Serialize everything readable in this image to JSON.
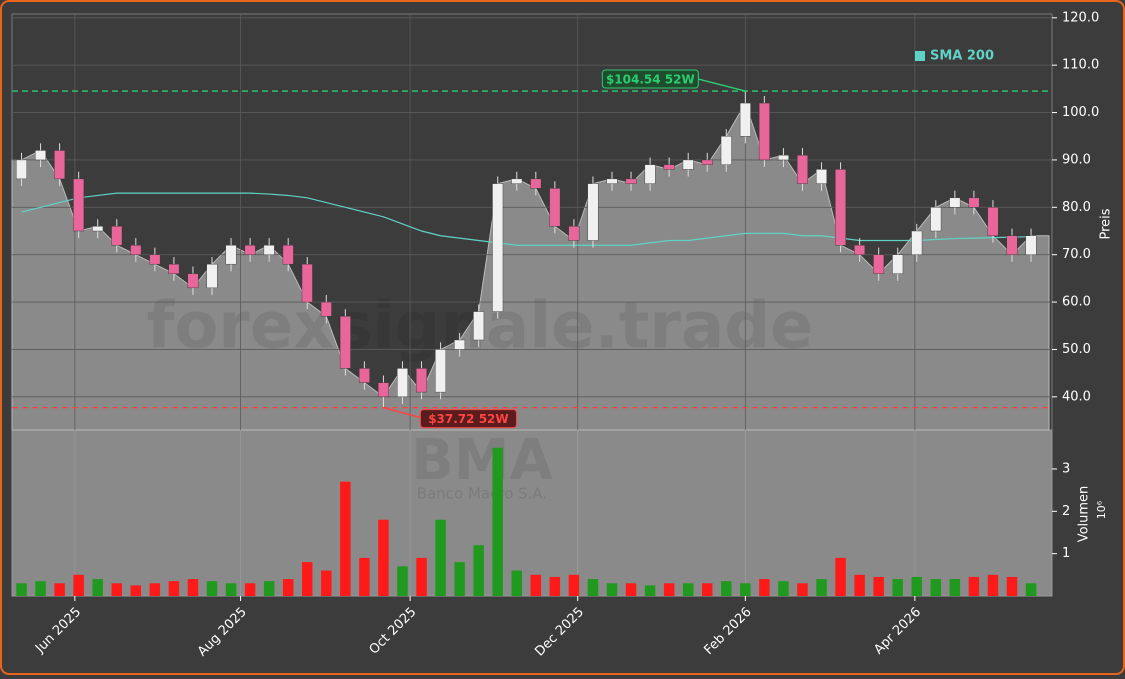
{
  "chart_data": {
    "type": "candlestick",
    "watermark": "forexsignale.trade",
    "ticker": "BMA",
    "company": "Banco Macro S.A.",
    "ylabel": "Preis",
    "volume_label": "Volumen",
    "volume_exponent": "10⁶",
    "x": [
      0.5,
      1.5,
      2.5,
      3.5,
      4.5,
      5.5,
      6.5,
      7.5,
      8.5,
      9.5,
      10.5,
      11.5,
      12.5,
      13.5,
      14.5,
      15.5,
      16.5,
      17.5,
      18.5,
      19.5,
      20.5,
      21.5,
      22.5,
      23.5,
      24.5,
      25.5,
      26.5,
      27.5,
      28.5,
      29.5,
      30.5,
      31.5,
      32.5,
      33.5,
      34.5,
      35.5,
      36.5,
      37.5,
      38.5,
      39.5,
      40.5,
      41.5,
      42.5,
      43.5,
      44.5,
      45.5,
      46.5,
      47.5,
      48.5,
      49.5,
      50.5,
      51.5,
      52.5,
      53.5
    ],
    "open": [
      86,
      90,
      92,
      86,
      75,
      76,
      72,
      70,
      68,
      66,
      63,
      68,
      72,
      70,
      72,
      68,
      60,
      57,
      46,
      43,
      40,
      46,
      41,
      50,
      52,
      58,
      85,
      86,
      84,
      76,
      73,
      85,
      86,
      85,
      89,
      88,
      90,
      89,
      95,
      102,
      90,
      91,
      85,
      88,
      72,
      70,
      66,
      70,
      75,
      80,
      82,
      80,
      74,
      70
    ],
    "high": [
      91.5,
      93.5,
      93.5,
      87.5,
      77.5,
      77.5,
      73.5,
      71.5,
      69.5,
      67.5,
      69.5,
      73.5,
      73.5,
      73.5,
      73.5,
      69.5,
      61.5,
      58.5,
      47.5,
      44.5,
      47.5,
      47.5,
      51.5,
      53.5,
      59.5,
      86.5,
      87.5,
      87.5,
      85.5,
      77.5,
      86.5,
      87.5,
      87.5,
      90.5,
      90.5,
      91.5,
      91.5,
      96.5,
      104.54,
      103.5,
      92.5,
      92.5,
      89.5,
      89.5,
      73.5,
      71.5,
      71.5,
      76.5,
      81.5,
      83.5,
      83.5,
      81.5,
      75.5,
      75.5
    ],
    "low": [
      84.5,
      88.5,
      84.5,
      73.5,
      73.5,
      70.5,
      68.5,
      66.5,
      64.5,
      61.5,
      61.5,
      66.5,
      68.5,
      68.5,
      66.5,
      58.5,
      55.5,
      44.5,
      41.5,
      37.72,
      38.5,
      39.5,
      39.5,
      48.5,
      50.5,
      56.5,
      83.5,
      82.5,
      74.5,
      71.5,
      71.5,
      83.5,
      83.5,
      83.5,
      86.5,
      86.5,
      87.5,
      87.5,
      93.5,
      88.5,
      88.5,
      83.5,
      83.5,
      70.5,
      68.5,
      64.5,
      64.5,
      68.5,
      73.5,
      78.5,
      78.5,
      72.5,
      68.5,
      68.5
    ],
    "close": [
      90,
      92,
      86,
      75,
      76,
      72,
      70,
      68,
      66,
      63,
      68,
      72,
      70,
      72,
      68,
      60,
      57,
      46,
      43,
      40,
      46,
      41,
      50,
      52,
      58,
      85,
      86,
      84,
      76,
      73,
      85,
      86,
      85,
      89,
      88,
      90,
      89,
      95,
      102,
      90,
      91,
      85,
      88,
      72,
      70,
      66,
      70,
      75,
      80,
      82,
      80,
      74,
      70,
      74
    ],
    "volume": [
      0.3,
      0.35,
      0.3,
      0.5,
      0.4,
      0.3,
      0.25,
      0.3,
      0.35,
      0.4,
      0.35,
      0.3,
      0.3,
      0.35,
      0.4,
      0.8,
      0.6,
      2.7,
      0.9,
      1.8,
      0.7,
      0.9,
      1.8,
      0.8,
      1.2,
      3.5,
      0.6,
      0.5,
      0.45,
      0.5,
      0.4,
      0.3,
      0.3,
      0.25,
      0.3,
      0.3,
      0.3,
      0.35,
      0.3,
      0.4,
      0.35,
      0.3,
      0.4,
      0.9,
      0.5,
      0.45,
      0.4,
      0.45,
      0.4,
      0.4,
      0.45,
      0.5,
      0.45,
      0.3
    ],
    "series": [
      {
        "name": "SMA 200",
        "color": "#5fd3c6",
        "values": [
          79,
          80,
          81,
          82,
          82.5,
          83,
          83,
          83,
          83,
          83,
          83,
          83,
          83,
          82.8,
          82.5,
          82,
          81,
          80,
          79,
          78,
          76.5,
          75,
          74,
          73.5,
          73,
          72.5,
          72,
          72,
          72,
          72,
          72,
          72,
          72,
          72.5,
          73,
          73,
          73.5,
          74,
          74.5,
          74.5,
          74.5,
          74,
          74,
          73.5,
          73,
          73,
          73,
          73,
          73.2,
          73.4,
          73.5,
          73.6,
          73.7,
          73.8
        ]
      }
    ],
    "up_color": "#f0f0f0",
    "down_color": "#e8669a",
    "volume_up_color": "#1f9a1f",
    "volume_down_color": "#ff1a1a",
    "area_color": "#8a8a8a",
    "annotations": [
      {
        "value": 104.54,
        "label": "$104.54 52W",
        "color": "#2ecc71",
        "x": 38.5
      },
      {
        "value": 37.72,
        "label": "$37.72 52W",
        "color": "#ff4444",
        "x": 19.5
      }
    ],
    "xlim": [
      0,
      54.6
    ],
    "xticks": [
      {
        "value": 3.3,
        "label": "Jun 2025"
      },
      {
        "value": 12.0,
        "label": "Aug 2025"
      },
      {
        "value": 20.9,
        "label": "Oct 2025"
      },
      {
        "value": 29.7,
        "label": "Dec 2025"
      },
      {
        "value": 38.5,
        "label": "Feb 2026"
      },
      {
        "value": 47.4,
        "label": "Apr 2026"
      }
    ],
    "ylim": [
      33,
      120.8
    ],
    "yticks": [
      {
        "value": 40,
        "label": "40.0"
      },
      {
        "value": 50,
        "label": "50.0"
      },
      {
        "value": 60,
        "label": "60.0"
      },
      {
        "value": 70,
        "label": "70.0"
      },
      {
        "value": 80,
        "label": "80.0"
      },
      {
        "value": 90,
        "label": "90.0"
      },
      {
        "value": 100,
        "label": "100.0"
      },
      {
        "value": 110,
        "label": "110.0"
      },
      {
        "value": 120,
        "label": "120.0"
      }
    ],
    "volume_ylim": [
      0,
      3.92
    ],
    "volume_yticks": [
      1,
      2,
      3
    ],
    "grid": true,
    "legend": "upper right"
  }
}
